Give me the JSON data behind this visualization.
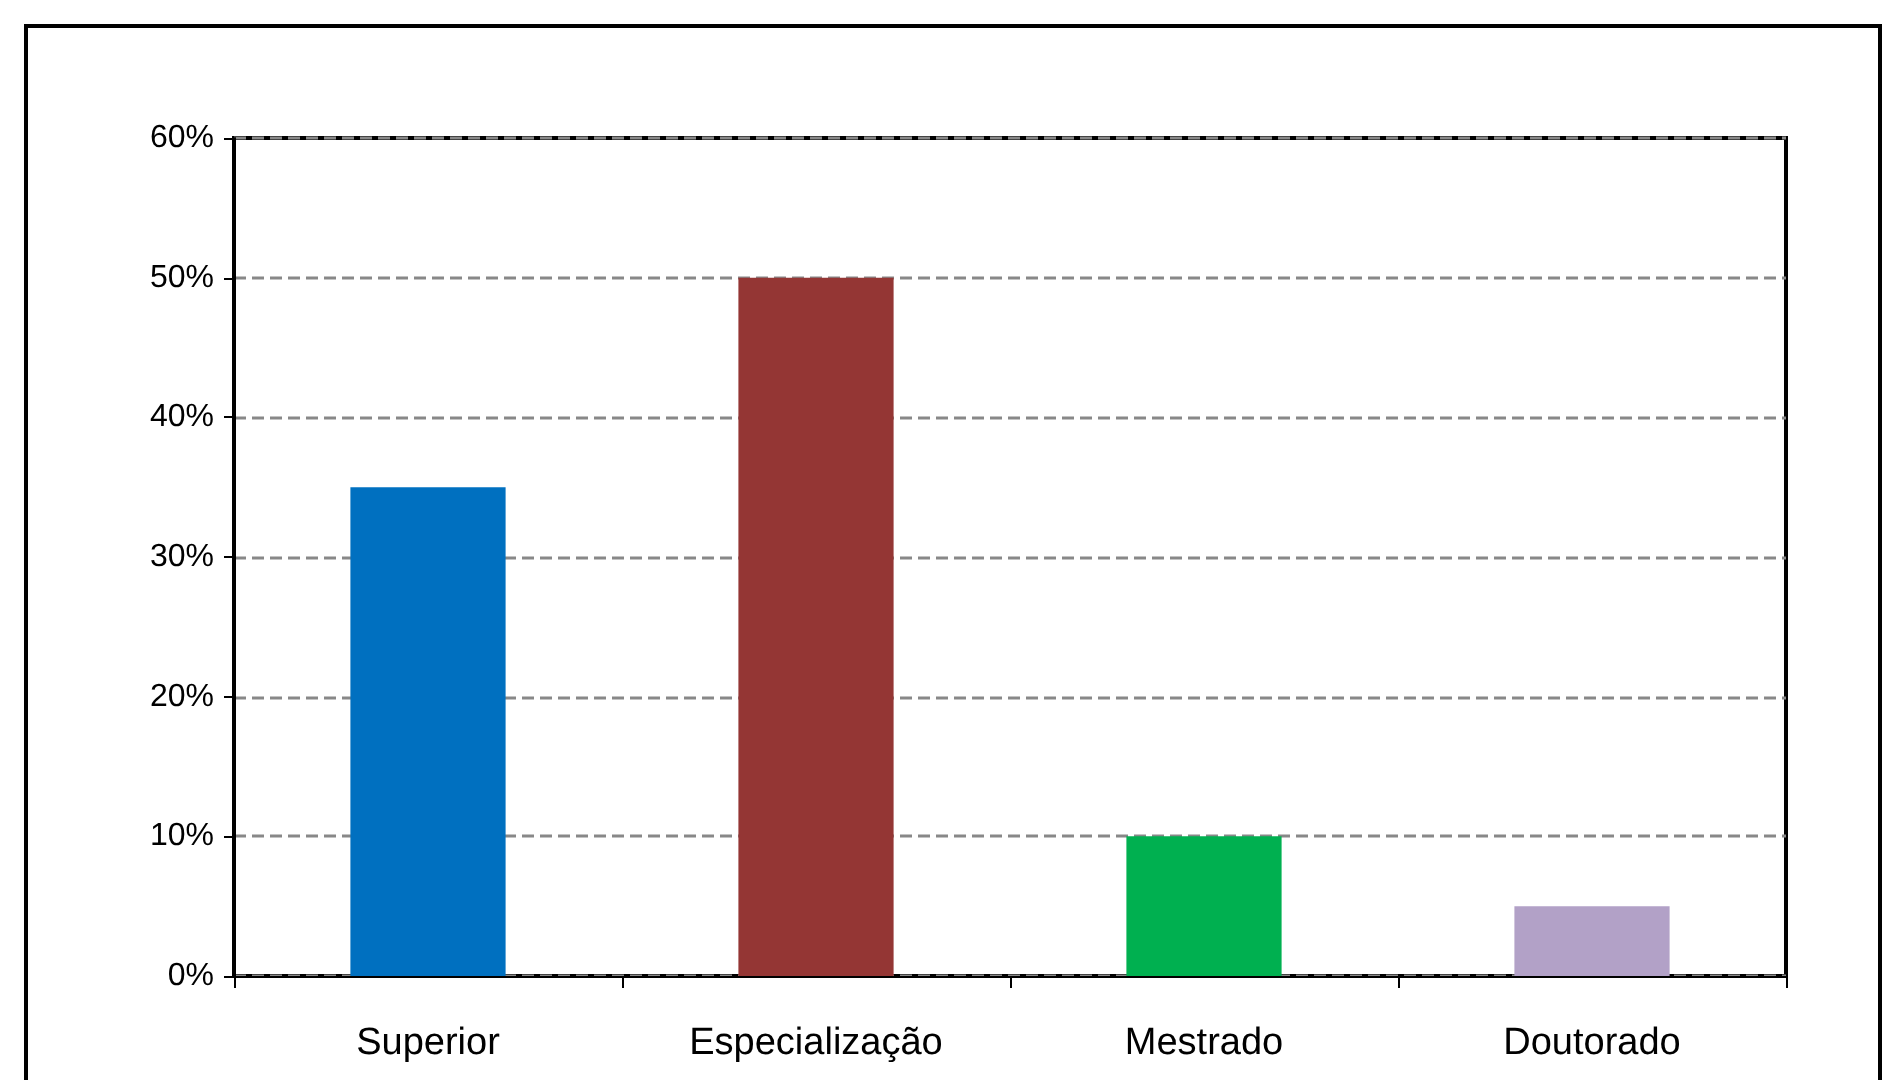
{
  "chart_data": {
    "type": "bar",
    "categories": [
      "Superior",
      "Especialização",
      "Mestrado",
      "Doutorado"
    ],
    "values": [
      35,
      50,
      10,
      5
    ],
    "colors": [
      "#0070c0",
      "#943634",
      "#00b050",
      "#b2a1c7"
    ],
    "ylim": [
      0,
      60
    ],
    "yticks": [
      {
        "value": 0,
        "label": "0%"
      },
      {
        "value": 10,
        "label": "10%"
      },
      {
        "value": 20,
        "label": "20%"
      },
      {
        "value": 30,
        "label": "30%"
      },
      {
        "value": 40,
        "label": "40%"
      },
      {
        "value": 50,
        "label": "50%"
      },
      {
        "value": 60,
        "label": "60%"
      }
    ],
    "grid": "y"
  }
}
